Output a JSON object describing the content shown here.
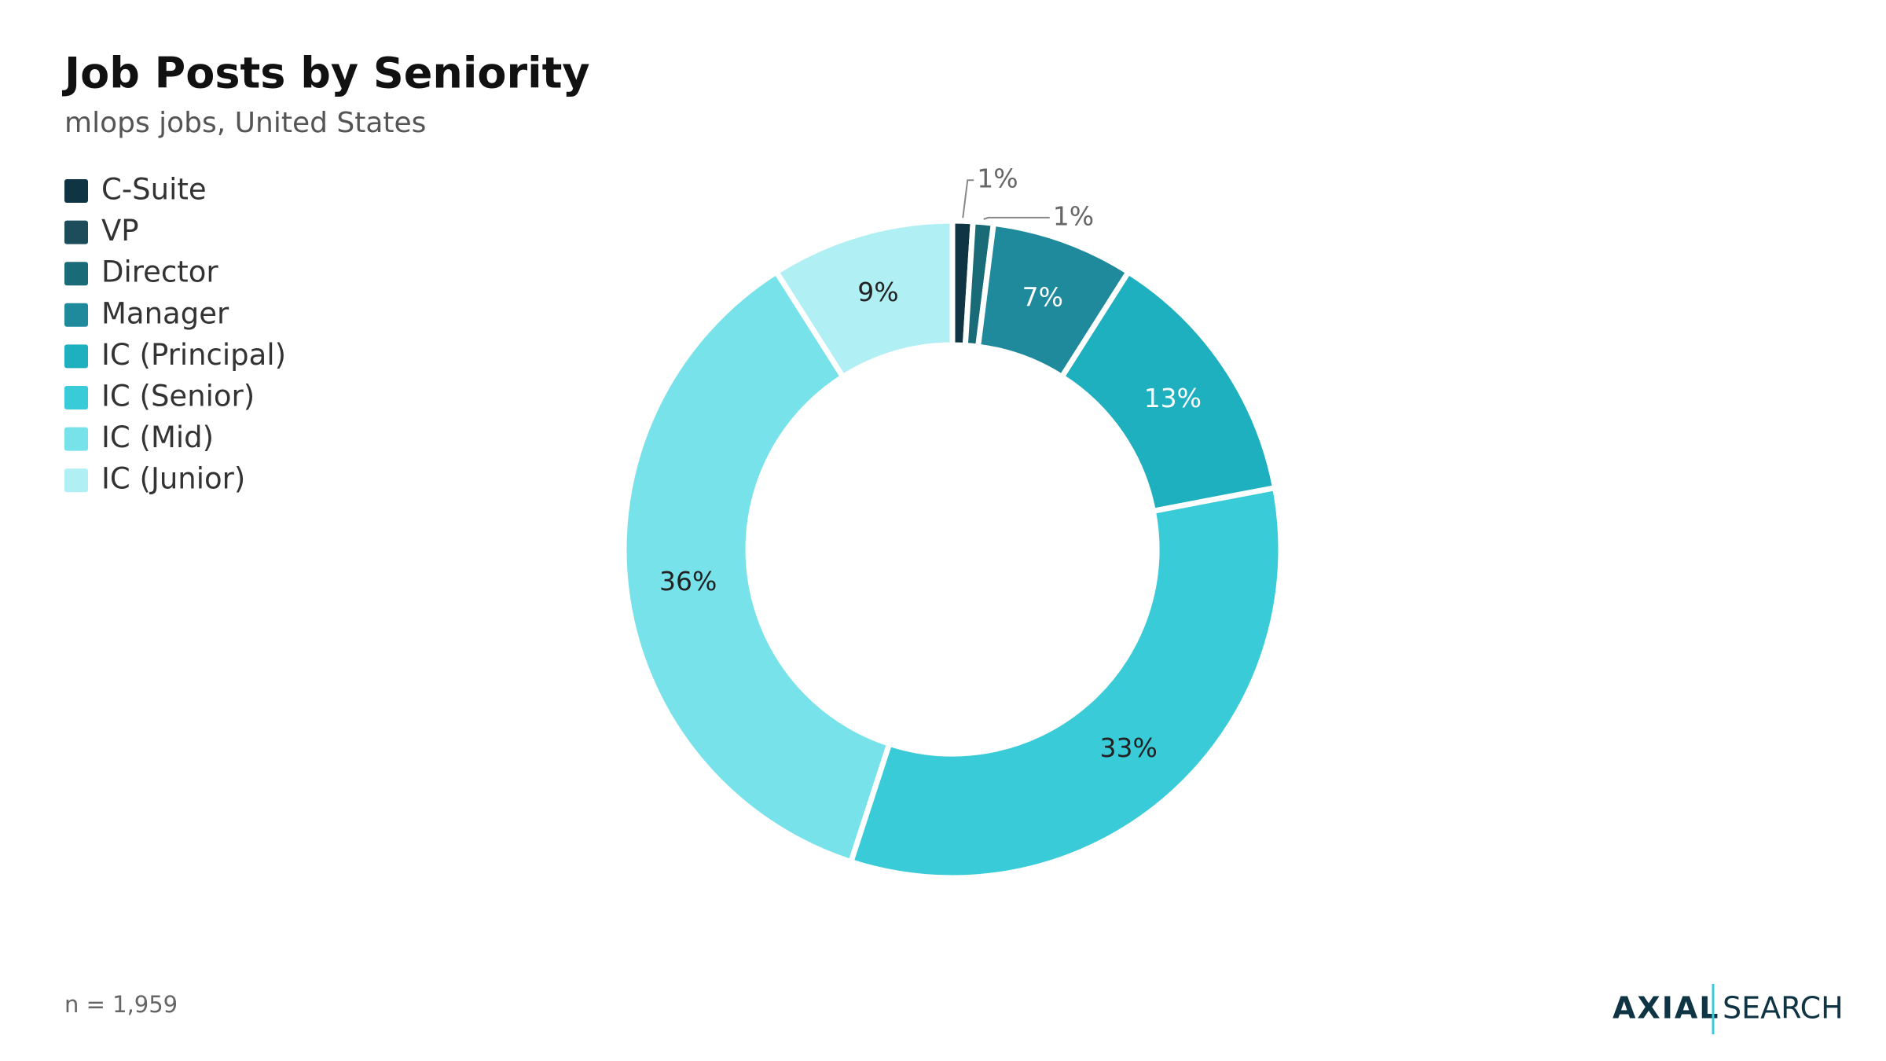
{
  "chart_data": {
    "type": "donut",
    "title": "Job Posts by Seniority",
    "subtitle": "mlops jobs, United States",
    "categories": [
      "C-Suite",
      "VP",
      "Director",
      "Manager",
      "IC (Principal)",
      "IC (Senior)",
      "IC (Mid)",
      "IC (Junior)"
    ],
    "values": [
      1,
      0,
      1,
      7,
      13,
      33,
      36,
      9
    ],
    "value_labels": [
      "1%",
      null,
      "1%",
      "7%",
      "13%",
      "33%",
      "36%",
      "9%"
    ],
    "colors": [
      "#0f3443",
      "#1d4d5b",
      "#1a6b78",
      "#1e8a9b",
      "#1eb0bf",
      "#3acbd8",
      "#78e2ea",
      "#b0eff3"
    ],
    "legend": "top-left",
    "note": "n = 1,959"
  },
  "brand": {
    "left": "AXIAL",
    "right": "SEARCH"
  }
}
